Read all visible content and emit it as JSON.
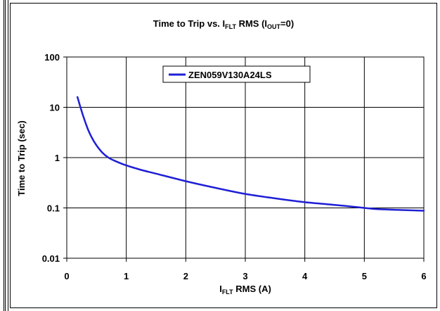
{
  "chart_data": {
    "type": "line",
    "title": {
      "main": "Time to Trip vs. I",
      "sub1": "FLT",
      "mid": " RMS (I",
      "sub2": "OUT",
      "end": "=0)"
    },
    "xlabel": {
      "main": "I",
      "sub": "FLT",
      "end": " RMS (A)"
    },
    "ylabel": "Time to Trip (sec)",
    "xlim": [
      0,
      6
    ],
    "ylim": [
      0.01,
      100
    ],
    "yscale": "log",
    "grid": true,
    "legend_position": "top-center",
    "x_ticks": [
      "0",
      "1",
      "2",
      "3",
      "4",
      "5",
      "6"
    ],
    "y_ticks": [
      "0.01",
      "0.1",
      "1",
      "10",
      "100"
    ],
    "series": [
      {
        "name": "ZEN059V130A24LS",
        "color": "#1f1fd6",
        "x": [
          0.18,
          0.22,
          0.28,
          0.35,
          0.42,
          0.5,
          0.6,
          0.7,
          0.8,
          1.0,
          1.25,
          1.5,
          2.0,
          2.5,
          3.0,
          3.5,
          4.0,
          4.5,
          5.0,
          5.2,
          5.5,
          6.0
        ],
        "y": [
          16,
          11,
          6.5,
          3.8,
          2.5,
          1.75,
          1.25,
          1.0,
          0.87,
          0.7,
          0.57,
          0.48,
          0.34,
          0.25,
          0.19,
          0.155,
          0.13,
          0.115,
          0.1,
          0.095,
          0.092,
          0.088
        ]
      }
    ]
  }
}
